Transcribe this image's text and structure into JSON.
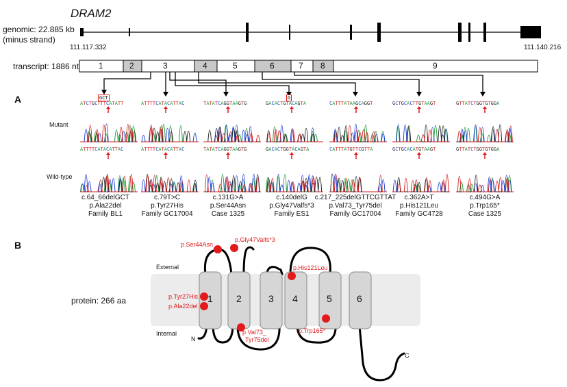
{
  "gene": "DRAM2",
  "genomic": {
    "line1": "genomic: 22.885 kb",
    "line2": "(minus strand)",
    "start": "111.117.332",
    "end": "111.140.216"
  },
  "transcript": {
    "label": "transcript: 1886 nt",
    "exons": [
      "1",
      "2",
      "3",
      "4",
      "5",
      "6",
      "7",
      "8",
      "9"
    ]
  },
  "panelA": {
    "letter": "A",
    "row_mutant": "Mutant",
    "row_wildtype": "Wild-type",
    "mutant_seqs": [
      "ATCTGCTTTCATATT",
      "ATTTTCATACATTAC",
      "TATATCAGGTAAGTG",
      "GACACTGTACAGTA",
      "CATTTATAAGCAGGT",
      "GCTGCACTTGTAAGT",
      "GTTATCTGGTGTGGA"
    ],
    "wildtype_seqs": [
      "ATTTTCATACATTAC",
      "ATTTTCATACATTAC",
      "TATATCAGGTAAGTG",
      "GACACTGGTACAGTA",
      "CATTTATGTTCGTTA",
      "GCTGCACATGTAAGT",
      "GTTATCTGGTGTGGA"
    ],
    "boxes": [
      "GCT",
      "G"
    ],
    "captions": [
      [
        "c.64_66delGCT",
        "p.Ala22del",
        "Family BL1"
      ],
      [
        "c.79T>C",
        "p.Tyr27His",
        "Family GC17004"
      ],
      [
        "c.131G>A",
        "p.Ser44Asn",
        "Case 1325"
      ],
      [
        "c.140delG",
        "p.Gly47Valfs*3",
        "Family ES1"
      ],
      [
        "c.217_225delGTTCGTTAT",
        "p.Val73_Tyr75del",
        "Family GC17004"
      ],
      [
        "c.362A>T",
        "p.His121Leu",
        "Family GC4728"
      ],
      [
        "c.494G>A",
        "p.Trp165*",
        "Case 1325"
      ]
    ]
  },
  "panelB": {
    "letter": "B",
    "protein_label": "protein: 266 aa",
    "external": "External",
    "internal": "Internal",
    "n_term": "N",
    "c_term": "C",
    "helices": [
      "1",
      "2",
      "3",
      "4",
      "5",
      "6"
    ],
    "mutations": {
      "ser44asn": "p.Ser44Asn",
      "gly47valfs": "p.Gly47Valfs*3",
      "his121leu": "p.His121Leu",
      "tyr27his": "p.Tyr27His",
      "ala22del": "p.Ala22del",
      "val73_line1": "p.Val73_",
      "val73_line2": "Tyr75del",
      "trp165": "p.Trp165*"
    },
    "colors": {
      "mutation": "#e31a1c",
      "membrane": "#ececec",
      "helix": "#d0d0d0"
    }
  }
}
